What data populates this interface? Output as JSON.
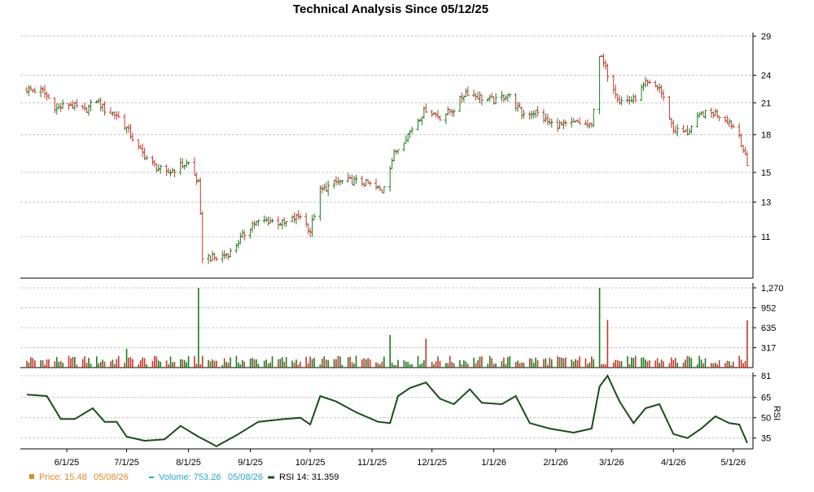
{
  "chart_data": {
    "type": "candlestick",
    "title": "Technical Analysis Since 05/12/25",
    "x_labels": [
      "6/1/25",
      "7/1/25",
      "8/1/25",
      "9/1/25",
      "10/1/25",
      "11/1/25",
      "12/1/25",
      "1/1/26",
      "2/1/26",
      "3/1/26",
      "4/1/26",
      "5/1/26"
    ],
    "price_axis": {
      "ticks": [
        11,
        13,
        15,
        18,
        21,
        24,
        29
      ],
      "range": [
        9,
        29.5
      ],
      "scale": "log"
    },
    "volume_axis": {
      "ticks": [
        "317",
        "635",
        "952",
        "1,270"
      ],
      "tick_values": [
        317,
        635,
        952,
        1270
      ],
      "range": [
        0,
        1270
      ]
    },
    "rsi_axis": {
      "label": "RSI",
      "ticks": [
        35,
        50,
        65,
        81
      ],
      "range": [
        27,
        81
      ]
    },
    "price_close_series": [
      {
        "d": "05/12/25",
        "v": 22.4
      },
      {
        "d": "05/20/25",
        "v": 22.2
      },
      {
        "d": "05/27/25",
        "v": 20.4
      },
      {
        "d": "06/02/25",
        "v": 20.9
      },
      {
        "d": "06/10/25",
        "v": 20.2
      },
      {
        "d": "06/16/25",
        "v": 21.3
      },
      {
        "d": "06/20/25",
        "v": 20.3
      },
      {
        "d": "06/26/25",
        "v": 19.8
      },
      {
        "d": "07/01/25",
        "v": 18.6
      },
      {
        "d": "07/07/25",
        "v": 16.8
      },
      {
        "d": "07/14/25",
        "v": 15.6
      },
      {
        "d": "07/21/25",
        "v": 14.9
      },
      {
        "d": "07/28/25",
        "v": 15.5
      },
      {
        "d": "08/01/25",
        "v": 15.7
      },
      {
        "d": "08/06/25",
        "v": 14.2
      },
      {
        "d": "08/08/25",
        "v": 10.0
      },
      {
        "d": "08/15/25",
        "v": 9.9
      },
      {
        "d": "08/22/25",
        "v": 10.2
      },
      {
        "d": "09/02/25",
        "v": 11.7
      },
      {
        "d": "09/10/25",
        "v": 11.9
      },
      {
        "d": "09/18/25",
        "v": 11.7
      },
      {
        "d": "09/26/25",
        "v": 12.2
      },
      {
        "d": "10/01/25",
        "v": 11.3
      },
      {
        "d": "10/06/25",
        "v": 13.7
      },
      {
        "d": "10/14/25",
        "v": 14.3
      },
      {
        "d": "10/22/25",
        "v": 14.4
      },
      {
        "d": "10/30/25",
        "v": 14.2
      },
      {
        "d": "11/06/25",
        "v": 13.7
      },
      {
        "d": "11/12/25",
        "v": 16.4
      },
      {
        "d": "11/20/25",
        "v": 18.3
      },
      {
        "d": "11/28/25",
        "v": 20.4
      },
      {
        "d": "12/05/25",
        "v": 19.6
      },
      {
        "d": "12/12/25",
        "v": 20.4
      },
      {
        "d": "12/18/25",
        "v": 22.2
      },
      {
        "d": "12/26/25",
        "v": 21.5
      },
      {
        "d": "01/02/26",
        "v": 21.2
      },
      {
        "d": "01/08/26",
        "v": 21.9
      },
      {
        "d": "01/15/26",
        "v": 19.9
      },
      {
        "d": "01/22/26",
        "v": 20.1
      },
      {
        "d": "01/29/26",
        "v": 19.0
      },
      {
        "d": "02/05/26",
        "v": 18.8
      },
      {
        "d": "02/12/26",
        "v": 19.1
      },
      {
        "d": "02/19/26",
        "v": 18.7
      },
      {
        "d": "02/23/26",
        "v": 26.5
      },
      {
        "d": "02/27/26",
        "v": 24.2
      },
      {
        "d": "03/05/26",
        "v": 21.2
      },
      {
        "d": "03/12/26",
        "v": 21.3
      },
      {
        "d": "03/18/26",
        "v": 23.0
      },
      {
        "d": "03/25/26",
        "v": 22.6
      },
      {
        "d": "04/01/26",
        "v": 18.4
      },
      {
        "d": "04/08/26",
        "v": 18.2
      },
      {
        "d": "04/15/26",
        "v": 19.9
      },
      {
        "d": "04/22/26",
        "v": 20.0
      },
      {
        "d": "04/29/26",
        "v": 19.2
      },
      {
        "d": "05/04/26",
        "v": 18.0
      },
      {
        "d": "05/08/26",
        "v": 15.48
      }
    ],
    "volume_spikes": [
      {
        "d": "07/01/25",
        "v": 300
      },
      {
        "d": "08/06/25",
        "v": 1270
      },
      {
        "d": "11/10/25",
        "v": 520
      },
      {
        "d": "11/28/25",
        "v": 460
      },
      {
        "d": "02/23/26",
        "v": 1270
      },
      {
        "d": "02/27/26",
        "v": 760
      },
      {
        "d": "05/08/26",
        "v": 753.26
      }
    ],
    "rsi_series": [
      {
        "d": "05/12/25",
        "v": 67
      },
      {
        "d": "05/22/25",
        "v": 66
      },
      {
        "d": "05/29/25",
        "v": 49
      },
      {
        "d": "06/05/25",
        "v": 49
      },
      {
        "d": "06/14/25",
        "v": 57
      },
      {
        "d": "06/20/25",
        "v": 47
      },
      {
        "d": "06/26/25",
        "v": 47
      },
      {
        "d": "07/01/25",
        "v": 36
      },
      {
        "d": "07/10/25",
        "v": 33
      },
      {
        "d": "07/20/25",
        "v": 34
      },
      {
        "d": "07/28/25",
        "v": 44
      },
      {
        "d": "08/06/25",
        "v": 36
      },
      {
        "d": "08/15/25",
        "v": 29
      },
      {
        "d": "08/25/25",
        "v": 37
      },
      {
        "d": "09/05/25",
        "v": 47
      },
      {
        "d": "09/18/25",
        "v": 49
      },
      {
        "d": "09/26/25",
        "v": 50
      },
      {
        "d": "10/01/25",
        "v": 45
      },
      {
        "d": "10/06/25",
        "v": 66
      },
      {
        "d": "10/14/25",
        "v": 62
      },
      {
        "d": "10/24/25",
        "v": 54
      },
      {
        "d": "11/04/25",
        "v": 47
      },
      {
        "d": "11/10/25",
        "v": 46
      },
      {
        "d": "11/14/25",
        "v": 66
      },
      {
        "d": "11/20/25",
        "v": 72
      },
      {
        "d": "11/28/25",
        "v": 76
      },
      {
        "d": "12/05/25",
        "v": 64
      },
      {
        "d": "12/12/25",
        "v": 60
      },
      {
        "d": "12/20/25",
        "v": 71
      },
      {
        "d": "12/26/25",
        "v": 61
      },
      {
        "d": "01/05/26",
        "v": 60
      },
      {
        "d": "01/12/26",
        "v": 66
      },
      {
        "d": "01/19/26",
        "v": 46
      },
      {
        "d": "01/29/26",
        "v": 42
      },
      {
        "d": "02/10/26",
        "v": 39
      },
      {
        "d": "02/19/26",
        "v": 42
      },
      {
        "d": "02/23/26",
        "v": 73
      },
      {
        "d": "02/27/26",
        "v": 81
      },
      {
        "d": "03/05/26",
        "v": 62
      },
      {
        "d": "03/12/26",
        "v": 46
      },
      {
        "d": "03/18/26",
        "v": 57
      },
      {
        "d": "03/25/26",
        "v": 60
      },
      {
        "d": "04/01/26",
        "v": 38
      },
      {
        "d": "04/08/26",
        "v": 35
      },
      {
        "d": "04/15/26",
        "v": 42
      },
      {
        "d": "04/22/26",
        "v": 51
      },
      {
        "d": "04/29/26",
        "v": 46
      },
      {
        "d": "05/04/26",
        "v": 45
      },
      {
        "d": "05/08/26",
        "v": 31.359
      }
    ]
  },
  "legend": {
    "price_label": "Price: 15.48",
    "price_date": "05/08/26",
    "volume_label": "Volume: 753.26",
    "volume_date": "05/08/26",
    "rsi_label": "RSI 14: 31.359"
  },
  "colors": {
    "up": "#1f7a1f",
    "down": "#c0392b",
    "rsi_line": "#1a4d1a",
    "grid": "#c8c8c8",
    "price_legend": "#e08a2a",
    "volume_legend": "#2aa7c9"
  }
}
